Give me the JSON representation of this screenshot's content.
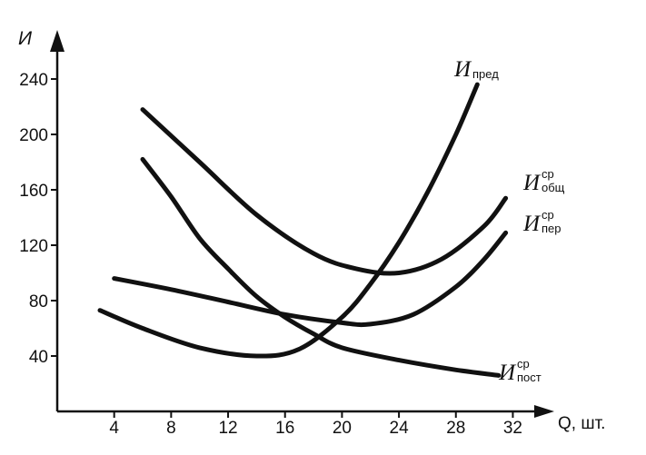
{
  "chart_data": {
    "type": "line",
    "xlabel": "Q, шт.",
    "ylabel": "И",
    "xlim": [
      0,
      34
    ],
    "ylim": [
      0,
      260
    ],
    "x_ticks": [
      4,
      8,
      12,
      16,
      20,
      24,
      28,
      32
    ],
    "y_ticks": [
      40,
      80,
      120,
      160,
      200,
      240
    ],
    "grid": false,
    "series": [
      {
        "name_main": "И",
        "name_sup": "",
        "name_sub": "пред",
        "points": [
          [
            3,
            73
          ],
          [
            6,
            60
          ],
          [
            10,
            46
          ],
          [
            14,
            40
          ],
          [
            17,
            45
          ],
          [
            20,
            68
          ],
          [
            22,
            92
          ],
          [
            24,
            122
          ],
          [
            26,
            158
          ],
          [
            28,
            200
          ],
          [
            29.5,
            236
          ]
        ]
      },
      {
        "name_main": "И",
        "name_sup": "ср",
        "name_sub": "общ",
        "points": [
          [
            6,
            218
          ],
          [
            10,
            180
          ],
          [
            14,
            142
          ],
          [
            18,
            114
          ],
          [
            21,
            103
          ],
          [
            24,
            100
          ],
          [
            27,
            110
          ],
          [
            30,
            134
          ],
          [
            31.5,
            154
          ]
        ]
      },
      {
        "name_main": "И",
        "name_sup": "ср",
        "name_sub": "пер",
        "points": [
          [
            4,
            96
          ],
          [
            8,
            88
          ],
          [
            12,
            79
          ],
          [
            16,
            70
          ],
          [
            20,
            64
          ],
          [
            22,
            63
          ],
          [
            25,
            70
          ],
          [
            28,
            90
          ],
          [
            30,
            110
          ],
          [
            31.5,
            129
          ]
        ]
      },
      {
        "name_main": "И",
        "name_sup": "ср",
        "name_sub": "пост",
        "points": [
          [
            6,
            182
          ],
          [
            8,
            155
          ],
          [
            10,
            125
          ],
          [
            12,
            103
          ],
          [
            14,
            83
          ],
          [
            16,
            68
          ],
          [
            18,
            56
          ],
          [
            20,
            46
          ],
          [
            24,
            37
          ],
          [
            28,
            30
          ],
          [
            31,
            26
          ]
        ]
      }
    ]
  }
}
